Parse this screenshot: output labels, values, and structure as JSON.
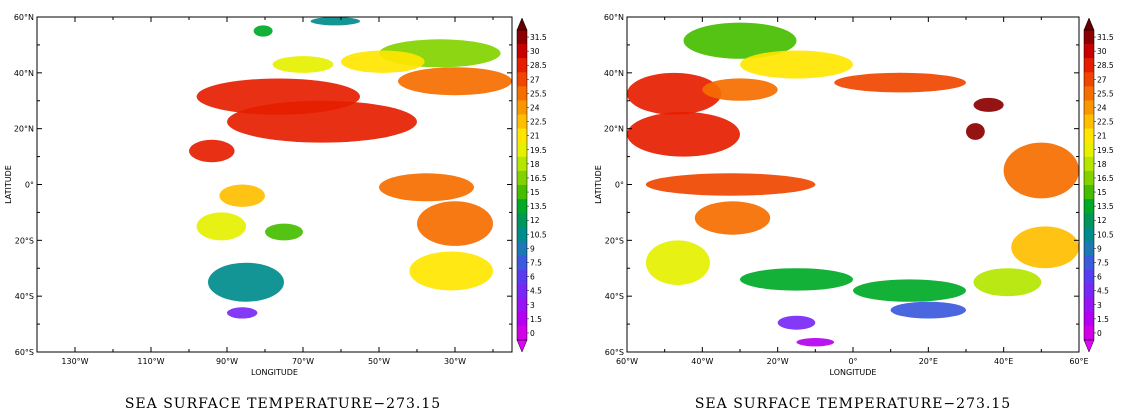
{
  "panels": [
    {
      "caption": "SEA SURFACE TEMPERATURE−273.15",
      "xlabel": "LONGITUDE",
      "ylabel": "LATITUDE",
      "x_ticks": [
        "130°W",
        "110°W",
        "90°W",
        "70°W",
        "50°W",
        "30°W"
      ],
      "y_ticks": [
        "60°N",
        "40°N",
        "20°N",
        "0°",
        "20°S",
        "40°S",
        "60°S"
      ],
      "lon_range": [
        -140,
        -15
      ],
      "lat_range": [
        -60,
        60
      ]
    },
    {
      "caption": "SEA SURFACE TEMPERATURE−273.15",
      "xlabel": "LONGITUDE",
      "ylabel": "LATITUDE",
      "x_ticks": [
        "60°W",
        "40°W",
        "20°W",
        "0°",
        "20°E",
        "40°E",
        "60°E"
      ],
      "y_ticks": [
        "60°N",
        "40°N",
        "20°N",
        "0°",
        "20°S",
        "40°S",
        "60°S"
      ],
      "lon_range": [
        -60,
        60
      ],
      "lat_range": [
        -60,
        60
      ]
    }
  ],
  "colorbar": {
    "labels": [
      "31.5",
      "30",
      "28.5",
      "27",
      "25.5",
      "24",
      "22.5",
      "21",
      "19.5",
      "18",
      "16.5",
      "15",
      "13.5",
      "12",
      "10.5",
      "9",
      "7.5",
      "6",
      "4.5",
      "3",
      "1.5",
      "0"
    ],
    "colors": [
      "#8b0000",
      "#c80000",
      "#e61e00",
      "#f04600",
      "#f56e00",
      "#fa9600",
      "#ffbe00",
      "#ffe600",
      "#e6f000",
      "#b4e600",
      "#82d200",
      "#46be00",
      "#00aa28",
      "#00965a",
      "#008c8c",
      "#1e78b4",
      "#3c5adc",
      "#5a3cf0",
      "#7828f5",
      "#9614f5",
      "#b400f0",
      "#d200e6"
    ],
    "extend": "both"
  },
  "chart_data": [
    {
      "type": "heatmap",
      "title": "SEA SURFACE TEMPERATURE−273.15",
      "xlabel": "LONGITUDE",
      "ylabel": "LATITUDE",
      "x_ticks": [
        "130°W",
        "110°W",
        "90°W",
        "70°W",
        "50°W",
        "30°W"
      ],
      "y_ticks": [
        "60°N",
        "40°N",
        "20°N",
        "0°",
        "20°S",
        "40°S",
        "60°S"
      ],
      "xlim": [
        -140,
        -15
      ],
      "ylim": [
        -60,
        60
      ],
      "value_range": [
        0,
        31.5
      ],
      "regions": [
        {
          "lon": [
            -68,
            -55
          ],
          "lat": [
            57,
            60
          ],
          "value": 10
        },
        {
          "lon": [
            -83,
            -78
          ],
          "lat": [
            53,
            57
          ],
          "value": 14
        },
        {
          "lon": [
            -50,
            -18
          ],
          "lat": [
            42,
            52
          ],
          "value": 17
        },
        {
          "lon": [
            -60,
            -38
          ],
          "lat": [
            40,
            48
          ],
          "value": 21
        },
        {
          "lon": [
            -45,
            -15
          ],
          "lat": [
            32,
            42
          ],
          "value": 26
        },
        {
          "lon": [
            -98,
            -55
          ],
          "lat": [
            25,
            38
          ],
          "value": 28.5
        },
        {
          "lon": [
            -90,
            -40
          ],
          "lat": [
            15,
            30
          ],
          "value": 29
        },
        {
          "lon": [
            -78,
            -62
          ],
          "lat": [
            40,
            46
          ],
          "value": 20
        },
        {
          "lon": [
            -100,
            -88
          ],
          "lat": [
            8,
            16
          ],
          "value": 28
        },
        {
          "lon": [
            -92,
            -80
          ],
          "lat": [
            -8,
            0
          ],
          "value": 22
        },
        {
          "lon": [
            -98,
            -85
          ],
          "lat": [
            -20,
            -10
          ],
          "value": 20
        },
        {
          "lon": [
            -80,
            -70
          ],
          "lat": [
            -20,
            -14
          ],
          "value": 15
        },
        {
          "lon": [
            -50,
            -25
          ],
          "lat": [
            -6,
            4
          ],
          "value": 26
        },
        {
          "lon": [
            -40,
            -20
          ],
          "lat": [
            -22,
            -6
          ],
          "value": 25
        },
        {
          "lon": [
            -42,
            -20
          ],
          "lat": [
            -38,
            -24
          ],
          "value": 21
        },
        {
          "lon": [
            -95,
            -75
          ],
          "lat": [
            -42,
            -28
          ],
          "value": 11
        },
        {
          "lon": [
            -90,
            -82
          ],
          "lat": [
            -48,
            -44
          ],
          "value": 5
        }
      ]
    },
    {
      "type": "heatmap",
      "title": "SEA SURFACE TEMPERATURE−273.15",
      "xlabel": "LONGITUDE",
      "ylabel": "LATITUDE",
      "x_ticks": [
        "60°W",
        "40°W",
        "20°W",
        "0°",
        "20°E",
        "40°E",
        "60°E"
      ],
      "y_ticks": [
        "60°N",
        "40°N",
        "20°N",
        "0°",
        "20°S",
        "40°S",
        "60°S"
      ],
      "xlim": [
        -60,
        60
      ],
      "ylim": [
        -60,
        60
      ],
      "value_range": [
        0,
        31.5
      ],
      "regions": [
        {
          "lon": [
            -45,
            -15
          ],
          "lat": [
            45,
            58
          ],
          "value": 15
        },
        {
          "lon": [
            -30,
            0
          ],
          "lat": [
            38,
            48
          ],
          "value": 21
        },
        {
          "lon": [
            -60,
            -35
          ],
          "lat": [
            25,
            40
          ],
          "value": 28
        },
        {
          "lon": [
            -40,
            -20
          ],
          "lat": [
            30,
            38
          ],
          "value": 26
        },
        {
          "lon": [
            -5,
            30
          ],
          "lat": [
            33,
            40
          ],
          "value": 27
        },
        {
          "lon": [
            -60,
            -30
          ],
          "lat": [
            10,
            26
          ],
          "value": 28.5
        },
        {
          "lon": [
            32,
            40
          ],
          "lat": [
            26,
            31
          ],
          "value": 31
        },
        {
          "lon": [
            30,
            35
          ],
          "lat": [
            16,
            22
          ],
          "value": 31
        },
        {
          "lon": [
            -55,
            -10
          ],
          "lat": [
            -4,
            4
          ],
          "value": 27
        },
        {
          "lon": [
            -42,
            -22
          ],
          "lat": [
            -18,
            -6
          ],
          "value": 25
        },
        {
          "lon": [
            -55,
            -38
          ],
          "lat": [
            -36,
            -20
          ],
          "value": 19
        },
        {
          "lon": [
            -30,
            0
          ],
          "lat": [
            -38,
            -30
          ],
          "value": 14
        },
        {
          "lon": [
            0,
            30
          ],
          "lat": [
            -42,
            -34
          ],
          "value": 13
        },
        {
          "lon": [
            40,
            60
          ],
          "lat": [
            -5,
            15
          ],
          "value": 26
        },
        {
          "lon": [
            42,
            60
          ],
          "lat": [
            -30,
            -15
          ],
          "value": 22
        },
        {
          "lon": [
            32,
            50
          ],
          "lat": [
            -40,
            -30
          ],
          "value": 18
        },
        {
          "lon": [
            10,
            30
          ],
          "lat": [
            -48,
            -42
          ],
          "value": 7
        },
        {
          "lon": [
            -20,
            -10
          ],
          "lat": [
            -52,
            -47
          ],
          "value": 4
        },
        {
          "lon": [
            -15,
            -5
          ],
          "lat": [
            -58,
            -55
          ],
          "value": 1
        }
      ]
    }
  ]
}
